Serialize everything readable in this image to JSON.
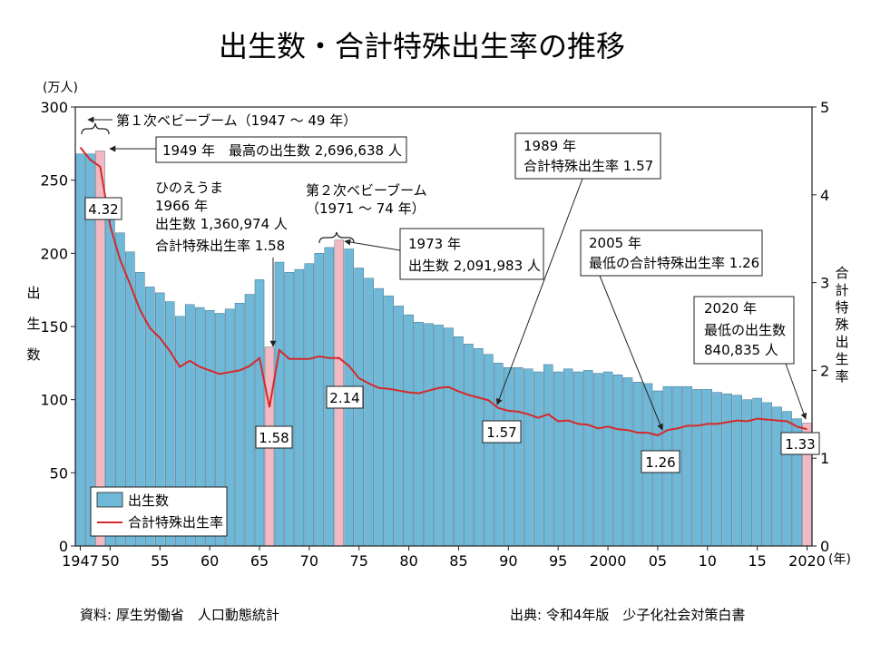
{
  "title": "出生数・合計特殊出生率の推移",
  "left_axis": {
    "unit": "(万人)",
    "label": [
      "出",
      "生",
      "数"
    ],
    "ticks": [
      0,
      50,
      100,
      150,
      200,
      250,
      300
    ]
  },
  "right_axis": {
    "label": [
      "合",
      "計",
      "特",
      "殊",
      "出",
      "生",
      "率"
    ],
    "ticks": [
      0,
      1,
      2,
      3,
      4,
      5
    ]
  },
  "x_axis": {
    "ticks": [
      {
        "year": 1947,
        "label": "1947"
      },
      {
        "year": 1950,
        "label": "50"
      },
      {
        "year": 1955,
        "label": "55"
      },
      {
        "year": 1960,
        "label": "60"
      },
      {
        "year": 1965,
        "label": "65"
      },
      {
        "year": 1970,
        "label": "70"
      },
      {
        "year": 1975,
        "label": "75"
      },
      {
        "year": 1980,
        "label": "80"
      },
      {
        "year": 1985,
        "label": "85"
      },
      {
        "year": 1990,
        "label": "90"
      },
      {
        "year": 1995,
        "label": "95"
      },
      {
        "year": 2000,
        "label": "2000"
      },
      {
        "year": 2005,
        "label": "05"
      },
      {
        "year": 2010,
        "label": "10"
      },
      {
        "year": 2015,
        "label": "15"
      },
      {
        "year": 2020,
        "label": "2020"
      }
    ],
    "unit": "(年)"
  },
  "legend": {
    "births": "出生数",
    "tfr": "合計特殊出生率"
  },
  "annotations": {
    "boom1": "第１次ベビーブーム（1947 ～ 49 年）",
    "max1949": "1949 年　最高の出生数 2,696,638 人",
    "hinoeuma": [
      "ひのえうま",
      "1966 年",
      "出生数 1,360,974 人",
      "合計特殊出生率 1.58"
    ],
    "boom2": [
      "第２次ベビーブーム",
      "（1971 ～ 74 年）"
    ],
    "y1973": [
      "1973 年",
      "出生数 2,091,983 人"
    ],
    "y1989": [
      "1989 年",
      "合計特殊出生率 1.57"
    ],
    "y2005": [
      "2005 年",
      "最低の合計特殊出生率 1.26"
    ],
    "y2020": [
      "2020 年",
      "最低の出生数",
      "840,835 人"
    ]
  },
  "value_boxes": {
    "v1949": "4.32",
    "v1966": "1.58",
    "v1973": "2.14",
    "v1989": "1.57",
    "v2005": "1.26",
    "v2020": "1.33"
  },
  "footer": {
    "source": "資料: 厚生労働省　人口動態統計",
    "origin": "出典: 令和4年版　少子化社会対策白書"
  },
  "colors": {
    "bar": "#6fb8d8",
    "highlight_bar": "#f2b9c2",
    "line": "#d42a2a"
  },
  "chart_data": {
    "type": "bar",
    "series": [
      {
        "name": "出生数",
        "unit": "万人",
        "x": [
          1947,
          1948,
          1949,
          1950,
          1951,
          1952,
          1953,
          1954,
          1955,
          1956,
          1957,
          1958,
          1959,
          1960,
          1961,
          1962,
          1963,
          1964,
          1965,
          1966,
          1967,
          1968,
          1969,
          1970,
          1971,
          1972,
          1973,
          1974,
          1975,
          1976,
          1977,
          1978,
          1979,
          1980,
          1981,
          1982,
          1983,
          1984,
          1985,
          1986,
          1987,
          1988,
          1989,
          1990,
          1991,
          1992,
          1993,
          1994,
          1995,
          1996,
          1997,
          1998,
          1999,
          2000,
          2001,
          2002,
          2003,
          2004,
          2005,
          2006,
          2007,
          2008,
          2009,
          2010,
          2011,
          2012,
          2013,
          2014,
          2015,
          2016,
          2017,
          2018,
          2019,
          2020
        ],
        "values": [
          268,
          268,
          270,
          234,
          214,
          201,
          187,
          177,
          173,
          167,
          157,
          165,
          163,
          161,
          159,
          162,
          166,
          172,
          182,
          136,
          194,
          187,
          189,
          193,
          200,
          204,
          209,
          203,
          190,
          183,
          176,
          171,
          164,
          158,
          153,
          152,
          151,
          149,
          143,
          138,
          135,
          131,
          125,
          122,
          122,
          121,
          119,
          124,
          119,
          121,
          119,
          120,
          118,
          119,
          117,
          115,
          112,
          111,
          106,
          109,
          109,
          109,
          107,
          107,
          105,
          104,
          103,
          100,
          101,
          98,
          95,
          92,
          87,
          84
        ]
      },
      {
        "name": "合計特殊出生率",
        "x": [
          1947,
          1948,
          1949,
          1950,
          1951,
          1952,
          1953,
          1954,
          1955,
          1956,
          1957,
          1958,
          1959,
          1960,
          1961,
          1962,
          1963,
          1964,
          1965,
          1966,
          1967,
          1968,
          1969,
          1970,
          1971,
          1972,
          1973,
          1974,
          1975,
          1976,
          1977,
          1978,
          1979,
          1980,
          1981,
          1982,
          1983,
          1984,
          1985,
          1986,
          1987,
          1988,
          1989,
          1990,
          1991,
          1992,
          1993,
          1994,
          1995,
          1996,
          1997,
          1998,
          1999,
          2000,
          2001,
          2002,
          2003,
          2004,
          2005,
          2006,
          2007,
          2008,
          2009,
          2010,
          2011,
          2012,
          2013,
          2014,
          2015,
          2016,
          2017,
          2018,
          2019,
          2020
        ],
        "values": [
          4.54,
          4.4,
          4.32,
          3.65,
          3.26,
          2.98,
          2.69,
          2.48,
          2.37,
          2.22,
          2.04,
          2.11,
          2.04,
          2.0,
          1.96,
          1.98,
          2.0,
          2.05,
          2.14,
          1.58,
          2.23,
          2.13,
          2.13,
          2.13,
          2.16,
          2.14,
          2.14,
          2.05,
          1.91,
          1.85,
          1.8,
          1.79,
          1.77,
          1.75,
          1.74,
          1.77,
          1.8,
          1.81,
          1.76,
          1.72,
          1.69,
          1.66,
          1.57,
          1.54,
          1.53,
          1.5,
          1.46,
          1.5,
          1.42,
          1.43,
          1.39,
          1.38,
          1.34,
          1.36,
          1.33,
          1.32,
          1.29,
          1.29,
          1.26,
          1.32,
          1.34,
          1.37,
          1.37,
          1.39,
          1.39,
          1.41,
          1.43,
          1.42,
          1.45,
          1.44,
          1.43,
          1.42,
          1.36,
          1.33
        ]
      }
    ],
    "highlight_years": [
      1949,
      1966,
      1973,
      2020
    ],
    "ylim_left": [
      0,
      300
    ],
    "ylim_right": [
      0,
      5
    ],
    "xlim": [
      1947,
      2020
    ],
    "grid": false,
    "legend": "bottom-left"
  }
}
